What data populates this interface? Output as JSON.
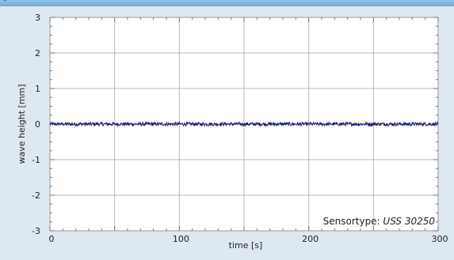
{
  "window": {
    "title_glyph": "–"
  },
  "chart_data": {
    "type": "line",
    "title": "",
    "xlabel": "time [s]",
    "ylabel": "wave height [mm]",
    "xlim": [
      0,
      300
    ],
    "ylim": [
      -3,
      3
    ],
    "x_ticks": [
      0,
      100,
      200,
      300
    ],
    "y_ticks": [
      3,
      2,
      1,
      0,
      -1,
      -2,
      -3
    ],
    "x_ticks_labeled": [
      "0",
      "100",
      "200",
      "300"
    ],
    "y_ticks_labeled": [
      "3",
      "2",
      "1",
      "0",
      "-1",
      "-2",
      "-3"
    ],
    "grid": true,
    "annotation": {
      "prefix": "Sensortype: ",
      "value": "USS 30250"
    },
    "series": [
      {
        "color": "#1a1a7a",
        "x_range": [
          0,
          300
        ],
        "baseline": 0.0,
        "noise_amplitude": 0.05
      }
    ],
    "colors": {
      "plot_bg": "#ffffff",
      "grid": "#b8b8b8",
      "line": "#1a1a7a",
      "frame": "#dde8f1"
    }
  }
}
